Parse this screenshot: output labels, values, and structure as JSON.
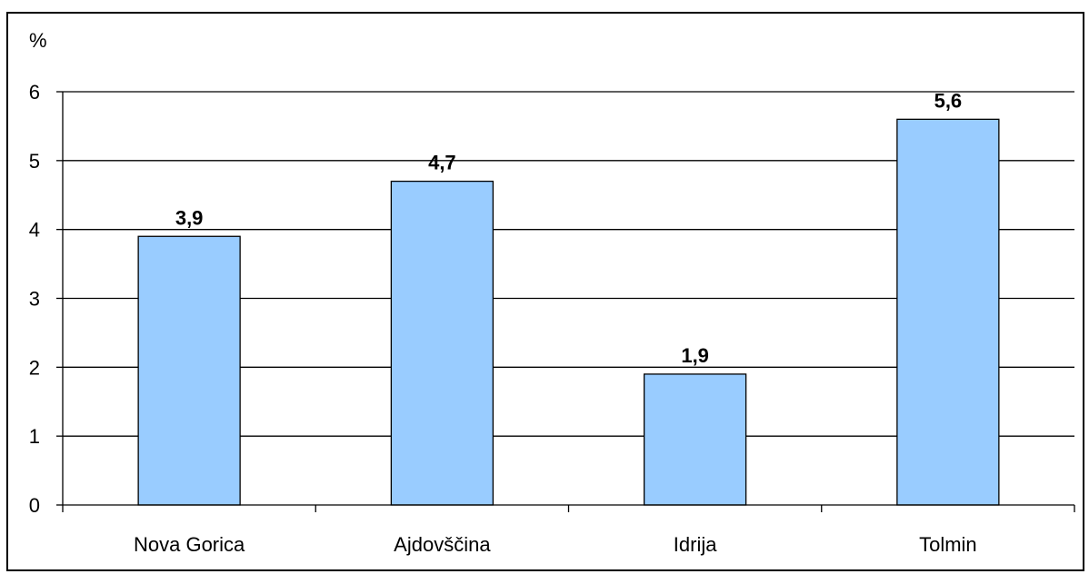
{
  "chart_data": {
    "type": "bar",
    "categories": [
      "Nova Gorica",
      "Ajdovščina",
      "Idrija",
      "Tolmin"
    ],
    "values": [
      3.9,
      4.7,
      1.9,
      5.6
    ],
    "data_labels": [
      "3,9",
      "4,7",
      "1,9",
      "5,6"
    ],
    "title": "",
    "xlabel": "",
    "ylabel": "%",
    "ylim": [
      0,
      6
    ],
    "yticks": [
      0,
      1,
      2,
      3,
      4,
      5,
      6
    ],
    "ytick_labels": [
      "0",
      "1",
      "2",
      "3",
      "4",
      "5",
      "6"
    ],
    "grid": true,
    "legend": "none",
    "colors": {
      "bar_fill": "#99ccff",
      "bar_stroke": "#000000",
      "grid": "#000000",
      "background": "#ffffff"
    }
  }
}
